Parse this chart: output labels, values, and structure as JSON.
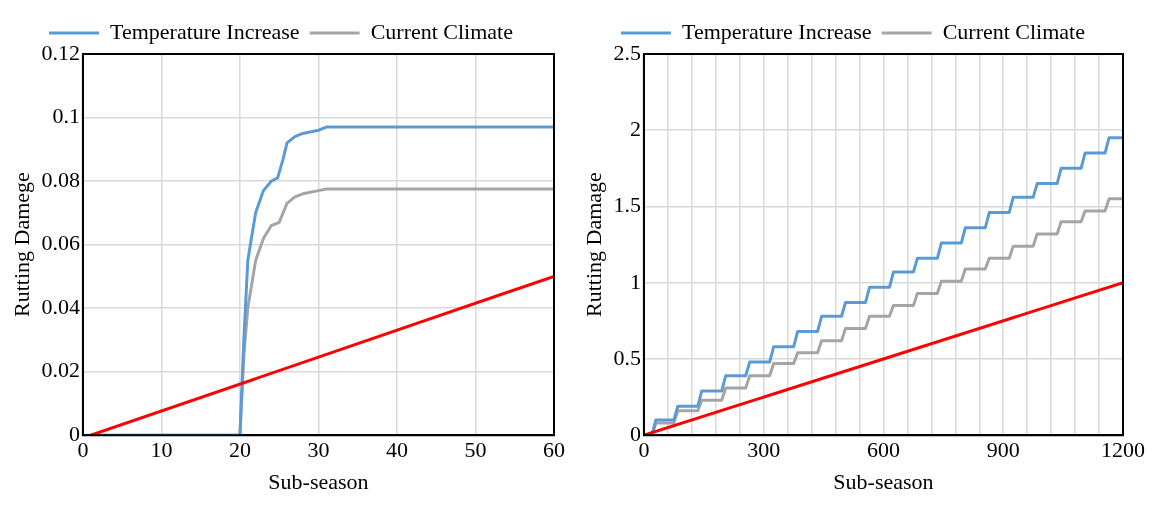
{
  "chart_data": [
    {
      "type": "line",
      "ylabel": "Rutting Damege",
      "xlabel": "Sub-season",
      "xlim": [
        0,
        60
      ],
      "xticks": [
        0,
        10,
        20,
        30,
        40,
        50,
        60
      ],
      "ylim": [
        0,
        0.12
      ],
      "yticks": [
        0,
        0.02,
        0.04,
        0.06,
        0.08,
        0.1,
        0.12
      ],
      "grid": true,
      "legend": "top",
      "marker": "none",
      "line_style": "solid",
      "series": [
        {
          "color": "#ff0000",
          "x": [
            1,
            60
          ],
          "values": [
            0,
            0.05
          ]
        },
        {
          "name": "Temperature Increase",
          "color": "#5b9bd5",
          "x": [
            1,
            20,
            20.5,
            21,
            22,
            23,
            24,
            24.8,
            25.5,
            26,
            27,
            28,
            30,
            31,
            60
          ],
          "values": [
            0,
            0,
            0.03,
            0.055,
            0.07,
            0.077,
            0.08,
            0.081,
            0.087,
            0.092,
            0.094,
            0.095,
            0.096,
            0.097,
            0.097
          ]
        },
        {
          "name": "Current Climate",
          "color": "#a5a5a5",
          "x": [
            1,
            20,
            20.5,
            21,
            22,
            23,
            24,
            25,
            26,
            27,
            28,
            30,
            31,
            60
          ],
          "values": [
            0,
            0,
            0.025,
            0.04,
            0.055,
            0.062,
            0.066,
            0.067,
            0.073,
            0.075,
            0.076,
            0.077,
            0.0775,
            0.0775
          ]
        }
      ]
    },
    {
      "type": "line",
      "ylabel": "Rutting Damage",
      "xlabel": "Sub-season",
      "xlim": [
        0,
        1200
      ],
      "xticks": [
        0,
        {
          "value": 60,
          "label": null
        },
        {
          "value": 120,
          "label": null
        },
        {
          "value": 180,
          "label": null
        },
        {
          "value": 240,
          "label": null
        },
        300,
        {
          "value": 360,
          "label": null
        },
        {
          "value": 420,
          "label": null
        },
        {
          "value": 480,
          "label": null
        },
        {
          "value": 540,
          "label": null
        },
        600,
        {
          "value": 660,
          "label": null
        },
        {
          "value": 720,
          "label": null
        },
        {
          "value": 780,
          "label": null
        },
        {
          "value": 840,
          "label": null
        },
        900,
        {
          "value": 960,
          "label": null
        },
        {
          "value": 1020,
          "label": null
        },
        {
          "value": 1080,
          "label": null
        },
        {
          "value": 1140,
          "label": null
        },
        1200
      ],
      "ylim": [
        0,
        2.5
      ],
      "yticks": [
        0,
        0.5,
        1,
        1.5,
        2,
        2.5
      ],
      "grid": true,
      "legend": "top",
      "marker": "none",
      "line_style": "solid",
      "series": [
        {
          "color": "#ff0000",
          "x": [
            0,
            1200
          ],
          "values": [
            0,
            1
          ]
        },
        {
          "name": "Temperature Increase",
          "color": "#5b9bd5",
          "x": [
            0,
            20,
            30,
            75,
            85,
            135,
            145,
            195,
            205,
            255,
            265,
            315,
            325,
            375,
            385,
            435,
            445,
            495,
            505,
            555,
            565,
            615,
            625,
            675,
            685,
            735,
            745,
            795,
            805,
            855,
            865,
            915,
            925,
            975,
            985,
            1035,
            1045,
            1095,
            1105,
            1155,
            1165,
            1200
          ],
          "values": [
            0,
            0,
            0.1,
            0.1,
            0.19,
            0.19,
            0.29,
            0.29,
            0.39,
            0.39,
            0.48,
            0.48,
            0.58,
            0.58,
            0.68,
            0.68,
            0.78,
            0.78,
            0.87,
            0.87,
            0.97,
            0.97,
            1.07,
            1.07,
            1.16,
            1.16,
            1.26,
            1.26,
            1.36,
            1.36,
            1.46,
            1.46,
            1.56,
            1.56,
            1.65,
            1.65,
            1.75,
            1.75,
            1.85,
            1.85,
            1.95,
            1.95
          ]
        },
        {
          "name": "Current Climate",
          "color": "#a5a5a5",
          "x": [
            0,
            20,
            30,
            75,
            85,
            135,
            145,
            195,
            205,
            255,
            265,
            315,
            325,
            375,
            385,
            435,
            445,
            495,
            505,
            555,
            565,
            615,
            625,
            675,
            685,
            735,
            745,
            795,
            805,
            855,
            865,
            915,
            925,
            975,
            985,
            1035,
            1045,
            1095,
            1105,
            1155,
            1165,
            1200
          ],
          "values": [
            0,
            0,
            0.08,
            0.08,
            0.16,
            0.16,
            0.23,
            0.23,
            0.31,
            0.31,
            0.39,
            0.39,
            0.47,
            0.47,
            0.54,
            0.54,
            0.62,
            0.62,
            0.7,
            0.7,
            0.78,
            0.78,
            0.85,
            0.85,
            0.93,
            0.93,
            1.01,
            1.01,
            1.09,
            1.09,
            1.16,
            1.16,
            1.24,
            1.24,
            1.32,
            1.32,
            1.4,
            1.4,
            1.47,
            1.47,
            1.55,
            1.55
          ]
        }
      ]
    }
  ]
}
